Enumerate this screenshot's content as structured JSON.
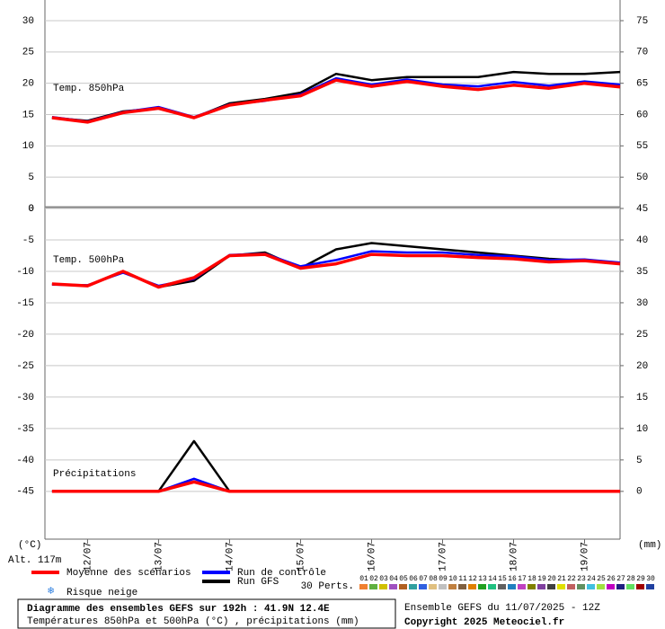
{
  "header": {
    "altitude": "Alt. 117m",
    "left_unit": "(°C)",
    "right_unit": "(mm)"
  },
  "legend": {
    "snow": "Risque neige"
  },
  "members": {
    "label": "30 Perts.",
    "items": [
      {
        "label": "01",
        "color": "#f08030"
      },
      {
        "label": "02",
        "color": "#60b040"
      },
      {
        "label": "03",
        "color": "#d0c000"
      },
      {
        "label": "04",
        "color": "#a050c0"
      },
      {
        "label": "05",
        "color": "#b06020"
      },
      {
        "label": "06",
        "color": "#30a0a0"
      },
      {
        "label": "07",
        "color": "#3060e0"
      },
      {
        "label": "08",
        "color": "#e0c080"
      },
      {
        "label": "09",
        "color": "#c0c0c0"
      },
      {
        "label": "10",
        "color": "#c08040"
      },
      {
        "label": "11",
        "color": "#806040"
      },
      {
        "label": "12",
        "color": "#e08000"
      },
      {
        "label": "13",
        "color": "#20a020"
      },
      {
        "label": "14",
        "color": "#20c080"
      },
      {
        "label": "15",
        "color": "#606060"
      },
      {
        "label": "16",
        "color": "#2080c0"
      },
      {
        "label": "17",
        "color": "#c040c0"
      },
      {
        "label": "18",
        "color": "#808000"
      },
      {
        "label": "19",
        "color": "#8040a0"
      },
      {
        "label": "20",
        "color": "#404040"
      },
      {
        "label": "21",
        "color": "#e0e000"
      },
      {
        "label": "22",
        "color": "#c06060"
      },
      {
        "label": "23",
        "color": "#609060"
      },
      {
        "label": "24",
        "color": "#40c0e0"
      },
      {
        "label": "25",
        "color": "#a0e040"
      },
      {
        "label": "26",
        "color": "#c000c0"
      },
      {
        "label": "27",
        "color": "#202080"
      },
      {
        "label": "28",
        "color": "#60e060"
      },
      {
        "label": "29",
        "color": "#a00000"
      },
      {
        "label": "30",
        "color": "#2040a0"
      }
    ]
  },
  "footer": {
    "title": "Diagramme des ensembles GEFS sur 192h : 41.9N 12.4E",
    "subtitle": "Températures 850hPa et 500hPa (°C) , précipitations (mm)",
    "run": "Ensemble GEFS du 11/07/2025 - 12Z",
    "copyright": "Copyright 2025 Meteociel.fr"
  },
  "chart_data": [
    {
      "type": "line",
      "label": "Temp. 850hPa",
      "x": [
        11.5,
        12,
        12.5,
        13,
        13.5,
        14,
        14.5,
        15,
        15.5,
        16,
        16.5,
        17,
        17.5,
        18,
        18.5,
        19,
        19.5
      ],
      "xlim": [
        11.4,
        19.5
      ],
      "ylim": [
        0,
        33.3
      ],
      "yticks": [
        0,
        5,
        10,
        15,
        20,
        25,
        30
      ],
      "y2lim": [
        45,
        78.3
      ],
      "y2ticks": [
        50,
        55,
        60,
        65,
        70,
        75
      ],
      "grid": true,
      "series": [
        {
          "name": "Run GFS",
          "color": "#000000",
          "values": [
            14.5,
            14,
            15.5,
            16,
            14.5,
            16.8,
            17.5,
            18.5,
            21.5,
            20.5,
            21,
            21,
            21,
            21.8,
            21.5,
            21.5,
            21.8
          ]
        },
        {
          "name": "Run de contrôle",
          "color": "#0000ff",
          "values": [
            14.6,
            13.9,
            15.4,
            16.2,
            14.6,
            16.6,
            17.2,
            18.2,
            20.8,
            19.8,
            20.6,
            19.8,
            19.5,
            20.2,
            19.6,
            20.3,
            19.8
          ]
        },
        {
          "name": "Moyenne des scénarios",
          "color": "#ff0000",
          "values": [
            14.5,
            13.8,
            15.3,
            16,
            14.5,
            16.5,
            17.3,
            18,
            20.5,
            19.5,
            20.3,
            19.5,
            19,
            19.7,
            19.2,
            20,
            19.4
          ]
        }
      ]
    },
    {
      "type": "line",
      "label": "Temp. 500hPa",
      "x": [
        11.5,
        12,
        12.5,
        13,
        13.5,
        14,
        14.5,
        15,
        15.5,
        16,
        16.5,
        17,
        17.5,
        18,
        18.5,
        19,
        19.5
      ],
      "xlim": [
        11.4,
        19.5
      ],
      "ylim": [
        -52.6,
        0
      ],
      "yticks": [
        0,
        -5,
        -10,
        -15,
        -20,
        -25,
        -30,
        -35,
        -40,
        -45
      ],
      "grid": true,
      "series": [
        {
          "color": "#000000",
          "values": [
            -12,
            -12.3,
            -10,
            -12.5,
            -11.5,
            -7.5,
            -7,
            -9.5,
            -6.5,
            -5.5,
            -6,
            -6.5,
            -7,
            -7.5,
            -8,
            -8.3,
            -8.8
          ]
        },
        {
          "color": "#0000ff",
          "values": [
            -12.1,
            -12.2,
            -10.2,
            -12.3,
            -11.2,
            -7.4,
            -7.2,
            -9.2,
            -8.2,
            -6.8,
            -7,
            -7,
            -7.4,
            -7.6,
            -8.2,
            -8.1,
            -8.6
          ]
        },
        {
          "color": "#ff0000",
          "values": [
            -12,
            -12.3,
            -10,
            -12.5,
            -11,
            -7.5,
            -7.3,
            -9.5,
            -8.8,
            -7.3,
            -7.5,
            -7.5,
            -7.8,
            -8,
            -8.5,
            -8.3,
            -8.8
          ]
        }
      ]
    },
    {
      "type": "line",
      "label": "Précipitations",
      "x": [
        11.5,
        12,
        12.5,
        13,
        13.5,
        14,
        14.5,
        15,
        15.5,
        16,
        16.5,
        17,
        17.5,
        18,
        18.5,
        19,
        19.5
      ],
      "xlim": [
        11.4,
        19.5
      ],
      "xticks": [
        {
          "value": 12,
          "label": "12/07"
        },
        {
          "value": 13,
          "label": "13/07"
        },
        {
          "value": 14,
          "label": "14/07"
        },
        {
          "value": 15,
          "label": "15/07"
        },
        {
          "value": 16,
          "label": "16/07"
        },
        {
          "value": 17,
          "label": "17/07"
        },
        {
          "value": 18,
          "label": "18/07"
        },
        {
          "value": 19,
          "label": "19/07"
        }
      ],
      "y2lim": [
        -7.6,
        45
      ],
      "y2ticks": [
        0,
        5,
        10,
        15,
        20,
        25,
        30,
        35,
        40,
        45
      ],
      "series": [
        {
          "axis": "y2",
          "color": "#000000",
          "values": [
            0,
            0,
            0,
            0,
            8,
            0,
            0,
            0,
            0,
            0,
            0,
            0,
            0,
            0,
            0,
            0,
            0
          ]
        },
        {
          "axis": "y2",
          "color": "#0000ff",
          "values": [
            0,
            0,
            0,
            0,
            2,
            0,
            0,
            0,
            0,
            0,
            0,
            0,
            0,
            0,
            0,
            0,
            0
          ]
        },
        {
          "axis": "y2",
          "color": "#ff0000",
          "values": [
            0,
            0,
            0,
            0,
            1.5,
            0,
            0,
            0,
            0,
            0,
            0,
            0,
            0,
            0,
            0,
            0,
            0
          ]
        }
      ]
    }
  ]
}
